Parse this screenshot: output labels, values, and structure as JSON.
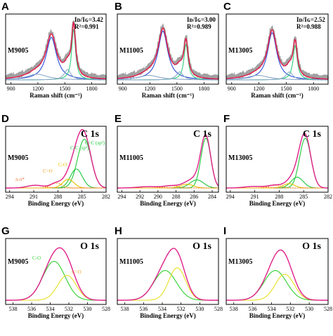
{
  "colors": {
    "experimental": "#a0a0a0",
    "envelope": "#e8194a",
    "d_band": "#2a4fd6",
    "g_band": "#2ed07a",
    "small_band": "#8aa8c8",
    "xps_envelope": "#e0208a",
    "sp3": "#1ec83a",
    "sp2": "#1ec83a",
    "c_o": "#e8c000",
    "c_eq_o": "#f0a020",
    "pi": "#f07030",
    "o1": "#30d030",
    "o2": "#e6e020"
  },
  "chart_data": [
    {
      "id": "raman_M9005",
      "panel_label": "A",
      "type": "line",
      "xlabel": "Raman shift (cm⁻¹)",
      "xticks": [
        "900",
        "1200",
        "1500",
        "1800"
      ],
      "xlim": [
        840,
        1960
      ],
      "sample": "M9005",
      "annotations": [
        "Iᴅ/Iɢ=3.42",
        "R²=0.991"
      ],
      "peaks": [
        {
          "center": 1350,
          "amplitude": 0.74,
          "width": 70
        },
        {
          "center": 1598,
          "amplitude": 0.88,
          "width": 26
        },
        {
          "center": 1190,
          "amplitude": 0.1,
          "width": 140
        },
        {
          "center": 1530,
          "amplitude": 0.18,
          "width": 45
        }
      ]
    },
    {
      "id": "raman_M11005",
      "panel_label": "B",
      "type": "line",
      "xlabel": "Raman shift (cm⁻¹)",
      "xticks": [
        "900",
        "1200",
        "1500",
        "1800"
      ],
      "xlim": [
        840,
        1960
      ],
      "sample": "M11005",
      "annotations": [
        "Iᴅ/Iɢ=3.00",
        "R²=0.989"
      ],
      "peaks": [
        {
          "center": 1345,
          "amplitude": 0.85,
          "width": 65
        },
        {
          "center": 1600,
          "amplitude": 0.62,
          "width": 28
        },
        {
          "center": 1190,
          "amplitude": 0.08,
          "width": 140
        },
        {
          "center": 1530,
          "amplitude": 0.14,
          "width": 45
        }
      ]
    },
    {
      "id": "raman_M13005",
      "panel_label": "C",
      "type": "line",
      "xlabel": "Raman shift (cm⁻¹)",
      "xticks": [
        "900",
        "1200",
        "1500",
        "1800"
      ],
      "xlim": [
        840,
        1960
      ],
      "sample": "M13005",
      "annotations": [
        "Iᴅ/Iɢ=2.52",
        "R²=0.988"
      ],
      "peaks": [
        {
          "center": 1345,
          "amplitude": 0.82,
          "width": 62
        },
        {
          "center": 1598,
          "amplitude": 0.6,
          "width": 28
        },
        {
          "center": 1190,
          "amplitude": 0.08,
          "width": 140
        },
        {
          "center": 1535,
          "amplitude": 0.14,
          "width": 45
        }
      ]
    },
    {
      "id": "xps_c1s_M9005",
      "panel_label": "D",
      "type": "line",
      "xlabel": "Binding Energy (eV)",
      "xticks": [
        "294",
        "291",
        "288",
        "285",
        "282"
      ],
      "xlim": [
        294.5,
        282
      ],
      "sample": "M9005",
      "title": "C 1s",
      "component_labels": [
        "π-π*",
        "C=O",
        "C-O",
        "C-C (sp³)",
        "C=C (sp²)"
      ],
      "peaks": [
        {
          "center": 284.7,
          "amplitude": 0.9,
          "width": 0.85
        },
        {
          "center": 285.7,
          "amplitude": 0.35,
          "width": 0.75
        },
        {
          "center": 286.7,
          "amplitude": 0.16,
          "width": 0.7
        },
        {
          "center": 288.2,
          "amplitude": 0.09,
          "width": 0.7
        },
        {
          "center": 290.8,
          "amplitude": 0.05,
          "width": 1.0
        }
      ]
    },
    {
      "id": "xps_c1s_M11005",
      "panel_label": "E",
      "type": "line",
      "xlabel": "Binding Energy (eV)",
      "xticks": [
        "294",
        "292",
        "290",
        "288",
        "286",
        "284"
      ],
      "xlim": [
        294.5,
        283.3
      ],
      "sample": "M11005",
      "title": "C 1s",
      "peaks": [
        {
          "center": 284.7,
          "amplitude": 0.92,
          "width": 0.55
        },
        {
          "center": 285.7,
          "amplitude": 0.15,
          "width": 0.75
        },
        {
          "center": 286.8,
          "amplitude": 0.07,
          "width": 0.7
        },
        {
          "center": 288.5,
          "amplitude": 0.04,
          "width": 0.8
        },
        {
          "center": 291.0,
          "amplitude": 0.025,
          "width": 1.2
        }
      ]
    },
    {
      "id": "xps_c1s_M13005",
      "panel_label": "F",
      "type": "line",
      "xlabel": "Binding Energy (eV)",
      "xticks": [
        "294",
        "291",
        "288",
        "285",
        "282"
      ],
      "xlim": [
        294.5,
        282
      ],
      "sample": "M13005",
      "title": "C 1s",
      "peaks": [
        {
          "center": 284.8,
          "amplitude": 0.92,
          "width": 0.7
        },
        {
          "center": 285.8,
          "amplitude": 0.2,
          "width": 0.75
        },
        {
          "center": 286.8,
          "amplitude": 0.08,
          "width": 0.7
        },
        {
          "center": 288.5,
          "amplitude": 0.05,
          "width": 0.8
        },
        {
          "center": 291.0,
          "amplitude": 0.03,
          "width": 1.2
        }
      ]
    },
    {
      "id": "xps_o1s_M9005",
      "panel_label": "G",
      "type": "line",
      "xlabel": "Binding Energy (eV)",
      "xticks": [
        "538",
        "536",
        "534",
        "532",
        "530",
        "528"
      ],
      "xlim": [
        538.8,
        528
      ],
      "sample": "M9005",
      "title": "O 1s",
      "component_labels": [
        "C-O",
        "C=O"
      ],
      "peaks": [
        {
          "center": 533.6,
          "amplitude": 0.72,
          "width": 1.2
        },
        {
          "center": 532.2,
          "amplitude": 0.46,
          "width": 1.0
        }
      ]
    },
    {
      "id": "xps_o1s_M11005",
      "panel_label": "H",
      "type": "line",
      "xlabel": "Binding Energy (eV)",
      "xticks": [
        "538",
        "536",
        "534",
        "532",
        "530",
        "528"
      ],
      "xlim": [
        538.8,
        528
      ],
      "sample": "M11005",
      "title": "O 1s",
      "peaks": [
        {
          "center": 533.7,
          "amplitude": 0.55,
          "width": 1.2
        },
        {
          "center": 532.4,
          "amplitude": 0.6,
          "width": 0.9
        }
      ]
    },
    {
      "id": "xps_o1s_M13005",
      "panel_label": "I",
      "type": "line",
      "xlabel": "Binding Energy (eV)",
      "xticks": [
        "538",
        "536",
        "534",
        "532",
        "530",
        "528"
      ],
      "xlim": [
        538.8,
        528
      ],
      "sample": "M13005",
      "title": "O 1s",
      "peaks": [
        {
          "center": 533.6,
          "amplitude": 0.55,
          "width": 1.2
        },
        {
          "center": 532.6,
          "amplitude": 0.48,
          "width": 1.0
        }
      ]
    }
  ]
}
